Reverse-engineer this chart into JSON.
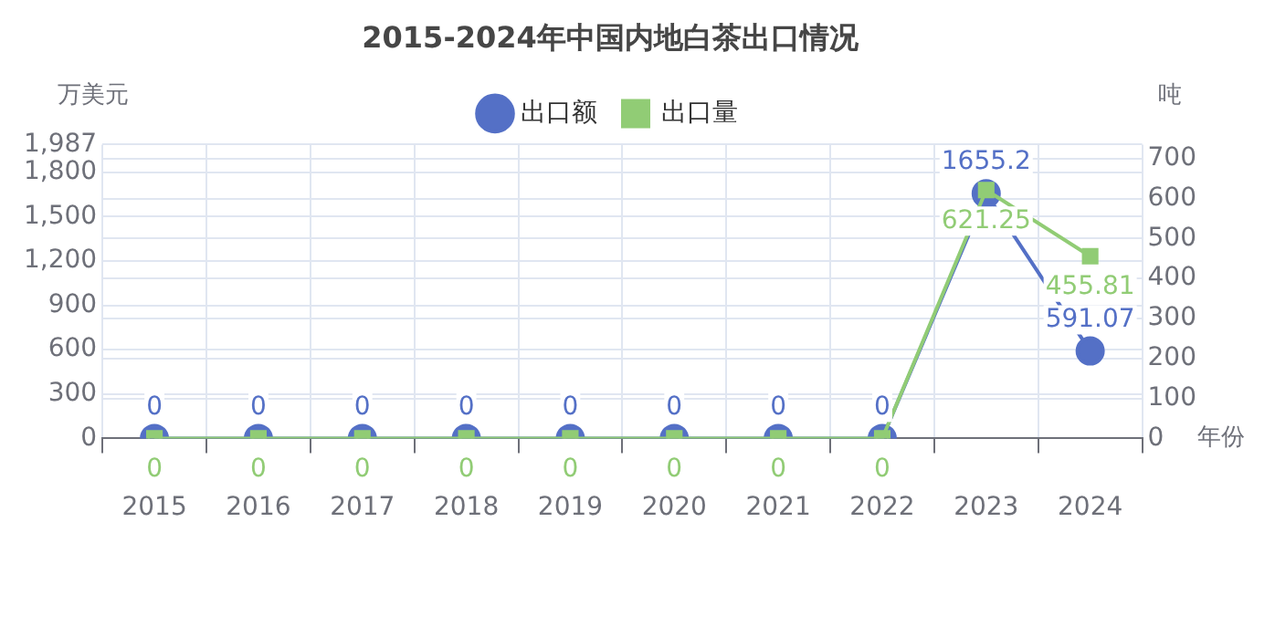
{
  "chart_data": {
    "type": "line",
    "title": "2015-2024年中国内地白茶出口情况",
    "ylabel": "万美元",
    "y2label": "吨",
    "xlabel": "年份",
    "categories": [
      "2015",
      "2016",
      "2017",
      "2018",
      "2019",
      "2020",
      "2021",
      "2022",
      "2023",
      "2024"
    ],
    "series": [
      {
        "name": "出口额",
        "color": "#5470c6",
        "marker": "circle",
        "values": [
          0,
          0,
          0,
          0,
          0,
          0,
          0,
          0,
          1655.2,
          591.07
        ]
      },
      {
        "name": "出口量",
        "color": "#91cc75",
        "marker": "square",
        "axis": "y2",
        "values": [
          0,
          0,
          0,
          0,
          0,
          0,
          0,
          0,
          621.25,
          455.81
        ]
      }
    ],
    "ylim": [
      0,
      1987
    ],
    "yticks": [
      0,
      300,
      600,
      900,
      {
        "value": 1200,
        "label": "1,200"
      },
      {
        "value": 1500,
        "label": "1,500"
      },
      {
        "value": 1800,
        "label": "1,800"
      },
      {
        "value": 1987,
        "label": "1,987"
      }
    ],
    "y2lim": [
      0,
      735
    ],
    "y2ticks": [
      0,
      100,
      200,
      300,
      400,
      500,
      600,
      700
    ],
    "data_labels": true,
    "grid": true,
    "legend": "top",
    "line_style": "solid"
  }
}
